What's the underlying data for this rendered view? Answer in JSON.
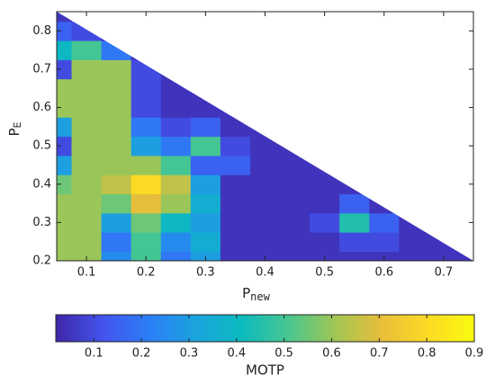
{
  "chart_data": {
    "type": "contour",
    "xlabel": {
      "main": "P",
      "sub": "new"
    },
    "ylabel": {
      "main": "P",
      "sub": "E"
    },
    "colorbar_label": "MOTP",
    "x": [
      0.05,
      0.1,
      0.15,
      0.2,
      0.25,
      0.3,
      0.35,
      0.4,
      0.45,
      0.5,
      0.55,
      0.6,
      0.65,
      0.7,
      0.75
    ],
    "y": [
      0.2,
      0.25,
      0.3,
      0.35,
      0.4,
      0.45,
      0.5,
      0.55,
      0.6,
      0.65,
      0.7,
      0.75,
      0.8,
      0.85
    ],
    "z": [
      [
        0.6,
        0.6,
        0.25,
        0.5,
        0.2,
        0.3,
        0.05,
        0.05,
        0.05,
        0.05,
        0.05,
        0.05,
        0.05,
        0.05,
        0.05
      ],
      [
        0.6,
        0.6,
        0.2,
        0.5,
        0.25,
        0.35,
        0.05,
        0.05,
        0.05,
        0.05,
        0.1,
        0.1,
        0.05,
        0.05,
        null
      ],
      [
        0.6,
        0.6,
        0.3,
        0.55,
        0.4,
        0.3,
        0.05,
        0.05,
        0.05,
        0.1,
        0.45,
        0.15,
        0.05,
        null,
        null
      ],
      [
        0.6,
        0.6,
        0.55,
        0.7,
        0.6,
        0.35,
        0.05,
        0.05,
        0.05,
        0.05,
        0.15,
        0.05,
        null,
        null,
        null
      ],
      [
        0.55,
        0.6,
        0.65,
        0.8,
        0.65,
        0.3,
        0.05,
        0.05,
        0.05,
        0.05,
        0.05,
        null,
        null,
        null,
        null
      ],
      [
        0.3,
        0.6,
        0.6,
        0.6,
        0.5,
        0.15,
        0.15,
        0.05,
        0.05,
        0.05,
        null,
        null,
        null,
        null,
        null
      ],
      [
        0.1,
        0.6,
        0.6,
        0.3,
        0.2,
        0.5,
        0.1,
        0.05,
        0.05,
        null,
        null,
        null,
        null,
        null,
        null
      ],
      [
        0.3,
        0.6,
        0.6,
        0.2,
        0.1,
        0.15,
        0.05,
        0.05,
        null,
        null,
        null,
        null,
        null,
        null,
        null
      ],
      [
        0.6,
        0.6,
        0.6,
        0.1,
        0.05,
        0.05,
        0.05,
        null,
        null,
        null,
        null,
        null,
        null,
        null,
        null
      ],
      [
        0.6,
        0.6,
        0.6,
        0.1,
        0.05,
        0.05,
        null,
        null,
        null,
        null,
        null,
        null,
        null,
        null,
        null
      ],
      [
        0.1,
        0.6,
        0.6,
        0.1,
        0.05,
        null,
        null,
        null,
        null,
        null,
        null,
        null,
        null,
        null,
        null
      ],
      [
        0.4,
        0.5,
        0.2,
        0.05,
        null,
        null,
        null,
        null,
        null,
        null,
        null,
        null,
        null,
        null,
        null
      ],
      [
        0.15,
        0.1,
        0.05,
        null,
        null,
        null,
        null,
        null,
        null,
        null,
        null,
        null,
        null,
        null,
        null
      ],
      [
        0.05,
        null,
        null,
        null,
        null,
        null,
        null,
        null,
        null,
        null,
        null,
        null,
        null,
        null,
        null
      ]
    ],
    "xlim": [
      0.05,
      0.75
    ],
    "ylim": [
      0.2,
      0.85
    ],
    "xticks": [
      0.1,
      0.2,
      0.3,
      0.4,
      0.5,
      0.6,
      0.7
    ],
    "yticks": [
      0.2,
      0.3,
      0.4,
      0.5,
      0.6,
      0.7,
      0.8
    ],
    "clim": [
      0.02,
      0.9
    ],
    "cticks": [
      0.1,
      0.2,
      0.3,
      0.4,
      0.5,
      0.6,
      0.7,
      0.8,
      0.9
    ],
    "colormap": [
      "#3e26a8",
      "#4353ec",
      "#2c7ef7",
      "#1ba3de",
      "#0bbbbe",
      "#49c690",
      "#a0c655",
      "#e8be3a",
      "#fbda24",
      "#f9fb0e"
    ]
  }
}
